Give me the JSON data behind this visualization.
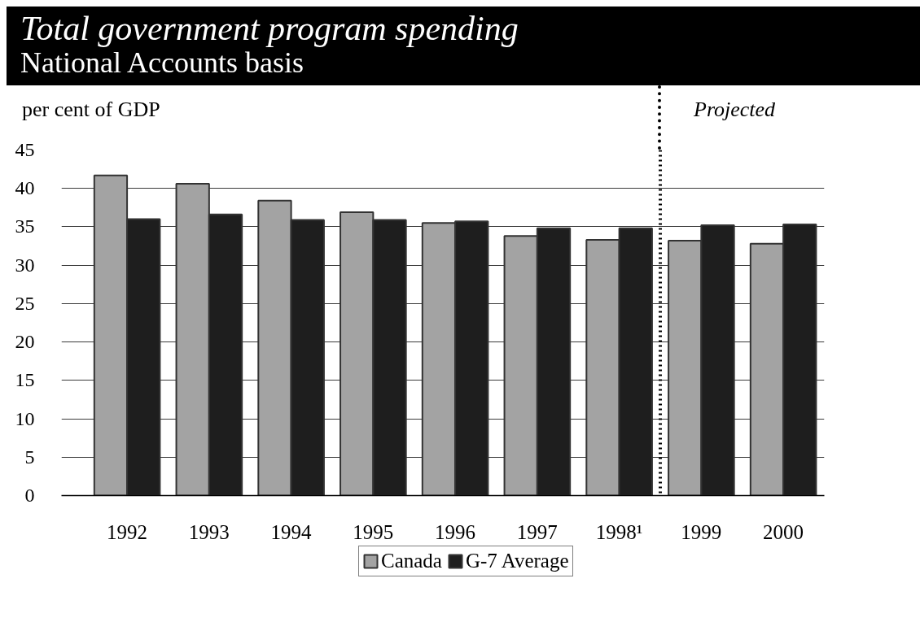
{
  "chart_data": {
    "type": "bar",
    "title": "Total government program spending",
    "subtitle": "National Accounts basis",
    "ylabel": "per cent of GDP",
    "x": [
      1992,
      1993,
      1994,
      1995,
      1996,
      1997,
      1998,
      1999,
      2000
    ],
    "series": [
      {
        "name": "Canada",
        "color": "#a3a3a3",
        "values": [
          41.7,
          40.6,
          38.4,
          36.9,
          35.5,
          33.8,
          33.3,
          33.2,
          32.8
        ]
      },
      {
        "name": "G-7 Average",
        "color": "#1e1e1e",
        "values": [
          36.0,
          36.6,
          35.9,
          35.9,
          35.7,
          34.8,
          34.8,
          35.2,
          35.3
        ]
      }
    ],
    "xlim": [
      1991.2,
      2000.5
    ],
    "xticks": [
      1992,
      1993,
      1994,
      1995,
      1996,
      1997,
      {
        "value": 1998,
        "label": "1998¹"
      },
      1999,
      2000
    ],
    "ylim": [
      0,
      45
    ],
    "yticks": [
      0,
      5,
      10,
      15,
      20,
      25,
      30,
      35,
      40,
      45
    ],
    "grid": "y",
    "legend": "bottom",
    "ref_lines": [
      {
        "axis": "x",
        "value": 1998.5,
        "label": "Projected",
        "line_style": "dotted",
        "color": "#000000"
      }
    ]
  }
}
